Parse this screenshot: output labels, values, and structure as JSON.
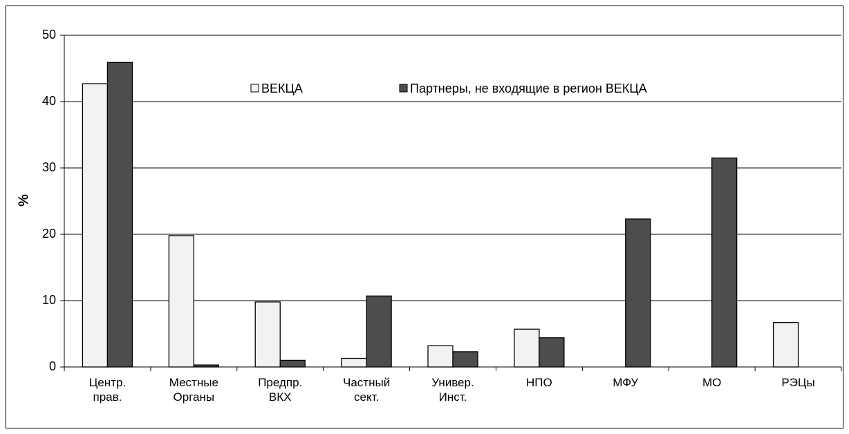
{
  "chart_data": {
    "type": "bar",
    "y_label": "%",
    "categories": [
      "Центр. прав.",
      "Местные Органы",
      "Предпр. ВКХ",
      "Частный сект.",
      "Универ. Инст.",
      "НПО",
      "МФУ",
      "МО",
      "РЭЦы"
    ],
    "series": [
      {
        "name": "ВЕКЦА",
        "color": "#f2f2f2",
        "values": [
          42.7,
          19.8,
          9.8,
          1.3,
          3.2,
          5.7,
          0,
          0,
          6.7
        ]
      },
      {
        "name": "Партнеры, не входящие в регион ВЕКЦА",
        "color": "#4d4d4d",
        "values": [
          45.9,
          0.3,
          1.0,
          10.7,
          2.3,
          4.4,
          22.3,
          31.5,
          0
        ]
      }
    ],
    "ylim": [
      0,
      50
    ],
    "yticks": [
      0,
      10,
      20,
      30,
      40,
      50
    ],
    "grid": true
  }
}
